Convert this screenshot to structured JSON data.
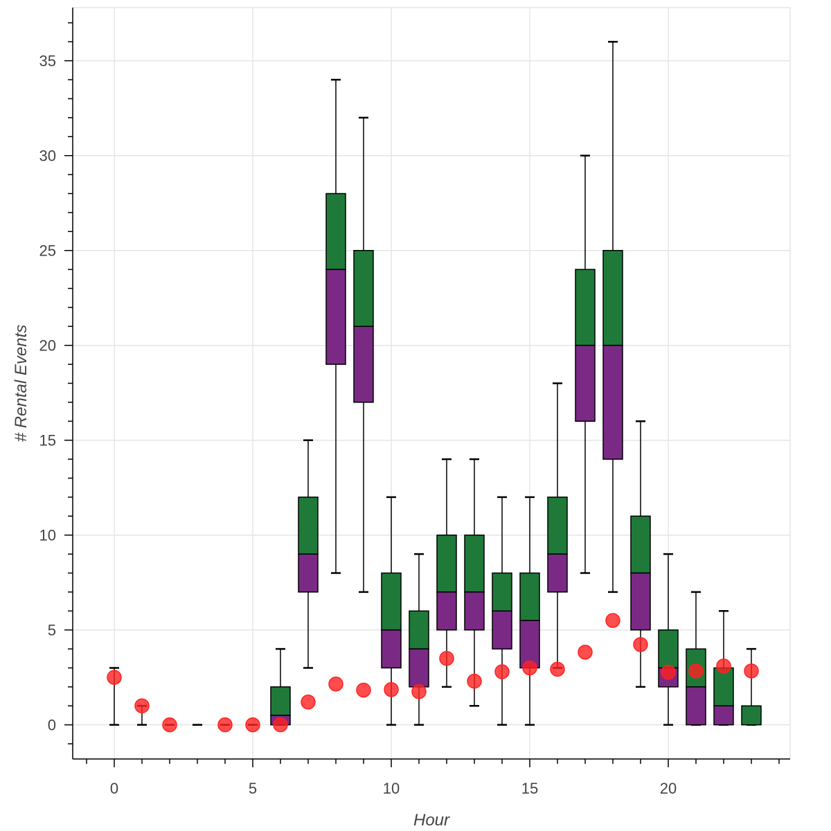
{
  "chart_data": {
    "type": "boxplot",
    "title": "",
    "xlabel": "Hour",
    "ylabel": "# Rental Events",
    "xlim": [
      -1.5,
      24.4
    ],
    "ylim": [
      -1.8,
      37.8
    ],
    "grid": true,
    "legend": null,
    "x_ticks": [
      0,
      5,
      10,
      15,
      20
    ],
    "x_tick_labels": [
      "0",
      "5",
      "10",
      "15",
      "20"
    ],
    "y_ticks": [
      0,
      5,
      10,
      15,
      20,
      25,
      30,
      35
    ],
    "y_tick_labels": [
      "0",
      "5",
      "10",
      "15",
      "20",
      "25",
      "30",
      "35"
    ],
    "colors": {
      "upper_box": "#1f7a3a",
      "lower_box": "#7a2a85",
      "mean_dot": "#ff2020",
      "whisker": "#000000",
      "grid": "#e5e5e5"
    },
    "categories": [
      0,
      1,
      2,
      3,
      4,
      5,
      6,
      7,
      8,
      9,
      10,
      11,
      12,
      13,
      14,
      15,
      16,
      17,
      18,
      19,
      20,
      21,
      22,
      23
    ],
    "series": [
      {
        "name": "lower_whisker",
        "values": [
          0,
          0,
          0,
          0,
          0,
          0,
          0,
          3,
          8,
          7,
          0,
          0,
          2,
          1,
          0,
          0,
          3,
          8,
          7,
          2,
          0,
          0,
          0,
          0
        ]
      },
      {
        "name": "q1",
        "values": [
          0,
          0,
          0,
          0,
          0,
          0,
          0,
          7,
          19,
          17,
          3,
          2,
          5,
          5,
          4,
          3,
          7,
          16,
          14,
          5,
          2,
          0,
          0,
          0
        ]
      },
      {
        "name": "median",
        "values": [
          0,
          0,
          0,
          0,
          0,
          0,
          0.5,
          9,
          24,
          21,
          5,
          4,
          7,
          7,
          6,
          5.5,
          9,
          20,
          20,
          8,
          3,
          2,
          1,
          0
        ]
      },
      {
        "name": "q3",
        "values": [
          0,
          0,
          0,
          0,
          0,
          0,
          2,
          12,
          28,
          25,
          8,
          6,
          10,
          10,
          8,
          8,
          12,
          24,
          25,
          11,
          5,
          4,
          3,
          1
        ]
      },
      {
        "name": "upper_whisker",
        "values": [
          3,
          1,
          0,
          0,
          0,
          0,
          4,
          15,
          34,
          32,
          12,
          9,
          14,
          14,
          12,
          12,
          18,
          30,
          36,
          16,
          9,
          7,
          6,
          4
        ]
      },
      {
        "name": "mean_points",
        "values": [
          2.5,
          1.0,
          0,
          null,
          0,
          0,
          0,
          1.2,
          2.15,
          1.83,
          1.86,
          1.75,
          3.5,
          2.3,
          2.8,
          3.0,
          2.93,
          3.83,
          5.5,
          4.23,
          2.77,
          2.84,
          3.1,
          2.84
        ]
      }
    ]
  }
}
